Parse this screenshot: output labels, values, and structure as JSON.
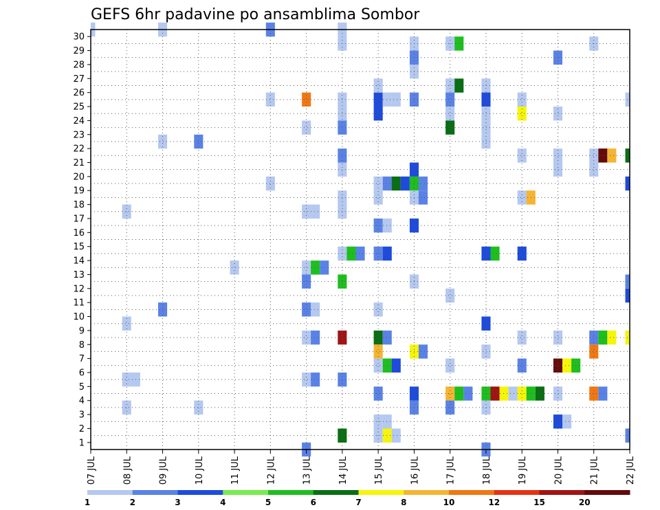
{
  "chart_data": {
    "type": "heatmap",
    "title": "GEFS 6hr padavine po ansamblima Sombor",
    "x_tick_labels": [
      "07 JUL",
      "08 JUL",
      "09 JUL",
      "10 JUL",
      "11 JUL",
      "12 JUL",
      "13 JUL",
      "14 JUL",
      "15 JUL",
      "16 JUL",
      "17 JUL",
      "18 JUL",
      "19 JUL",
      "20 JUL",
      "21 JUL",
      "22 JUL"
    ],
    "y_tick_labels": [
      "1",
      "2",
      "3",
      "4",
      "5",
      "6",
      "7",
      "8",
      "9",
      "10",
      "11",
      "12",
      "13",
      "14",
      "15",
      "16",
      "17",
      "18",
      "19",
      "20",
      "21",
      "22",
      "23",
      "24",
      "25",
      "26",
      "27",
      "28",
      "29",
      "30"
    ],
    "y_range": [
      0,
      30
    ],
    "x_range_days": [
      0,
      15
    ],
    "steps_per_day": 4,
    "grid": "dotted",
    "legend": {
      "position": "bottom",
      "labels": [
        "1",
        "2",
        "3",
        "4",
        "5",
        "6",
        "7",
        "8",
        "10",
        "12",
        "15",
        "20"
      ],
      "colors": [
        "#b4c8f0",
        "#5a82e6",
        "#1e4bdc",
        "#78eb50",
        "#1ebe1e",
        "#0a6e14",
        "#f5f50a",
        "#f5b432",
        "#f07814",
        "#e63214",
        "#a01414",
        "#640a0a"
      ]
    },
    "cells": [
      [
        0,
        30,
        1
      ],
      [
        5,
        30,
        2
      ],
      [
        7,
        30,
        1
      ],
      [
        7,
        29,
        1
      ],
      [
        2,
        30,
        1
      ],
      [
        9,
        29,
        1
      ],
      [
        9,
        28,
        2
      ],
      [
        9,
        27,
        1
      ],
      [
        10,
        29,
        1
      ],
      [
        10,
        26,
        1
      ],
      [
        10,
        25,
        2
      ],
      [
        10,
        29,
        5
      ],
      [
        10,
        26,
        6
      ],
      [
        11,
        26,
        1
      ],
      [
        13,
        28,
        2
      ],
      [
        14,
        29,
        1
      ],
      [
        5,
        25,
        1
      ],
      [
        6,
        25,
        10
      ],
      [
        7,
        25,
        1
      ],
      [
        8,
        25,
        3
      ],
      [
        7,
        24,
        1
      ],
      [
        8,
        26,
        1
      ],
      [
        8,
        25,
        1
      ],
      [
        8,
        24,
        3
      ],
      [
        8,
        25,
        1
      ],
      [
        9,
        25,
        2
      ],
      [
        10,
        24,
        1
      ],
      [
        10,
        23,
        6
      ],
      [
        11,
        23,
        1
      ],
      [
        11,
        24,
        1
      ],
      [
        11,
        22,
        1
      ],
      [
        11,
        25,
        3
      ],
      [
        12,
        24,
        7
      ],
      [
        12,
        25,
        1
      ],
      [
        13,
        24,
        1
      ],
      [
        15,
        25,
        1
      ],
      [
        6,
        23,
        1
      ],
      [
        7,
        23,
        2
      ],
      [
        2,
        22,
        1
      ],
      [
        3,
        22,
        2
      ],
      [
        7,
        21,
        2
      ],
      [
        7,
        20,
        1
      ],
      [
        12,
        21,
        1
      ],
      [
        13,
        21,
        1
      ],
      [
        13,
        20,
        1
      ],
      [
        14,
        21,
        1
      ],
      [
        14,
        20,
        1
      ],
      [
        14,
        21,
        20
      ],
      [
        14,
        21,
        8
      ],
      [
        15,
        21,
        6
      ],
      [
        5,
        19,
        1
      ],
      [
        8,
        19,
        1
      ],
      [
        8,
        19,
        2
      ],
      [
        8,
        19,
        6
      ],
      [
        8,
        19,
        3
      ],
      [
        9,
        20,
        3
      ],
      [
        9,
        19,
        5
      ],
      [
        9,
        19,
        2
      ],
      [
        15,
        19,
        3
      ],
      [
        7,
        18,
        1
      ],
      [
        8,
        18,
        1
      ],
      [
        9,
        18,
        1
      ],
      [
        9,
        18,
        2
      ],
      [
        12,
        18,
        1
      ],
      [
        12,
        18,
        8
      ],
      [
        1,
        17,
        1
      ],
      [
        6,
        17,
        1
      ],
      [
        6,
        17,
        1
      ],
      [
        7,
        17,
        1
      ],
      [
        8,
        16,
        2
      ],
      [
        8,
        16,
        1
      ],
      [
        9,
        16,
        3
      ],
      [
        7,
        14,
        1
      ],
      [
        7,
        14,
        5
      ],
      [
        7,
        14,
        2
      ],
      [
        8,
        14,
        2
      ],
      [
        8,
        14,
        3
      ],
      [
        11,
        14,
        3
      ],
      [
        11,
        14,
        5
      ],
      [
        12,
        14,
        3
      ],
      [
        4,
        13,
        1
      ],
      [
        6,
        13,
        1
      ],
      [
        6,
        13,
        5
      ],
      [
        6,
        13,
        2
      ],
      [
        6,
        12,
        2
      ],
      [
        7,
        12,
        5
      ],
      [
        9,
        12,
        1
      ],
      [
        10,
        11,
        1
      ],
      [
        15,
        11,
        3
      ],
      [
        15,
        11,
        8
      ],
      [
        15,
        12,
        2
      ],
      [
        2,
        10,
        2
      ],
      [
        6,
        10,
        2
      ],
      [
        6,
        10,
        1
      ],
      [
        8,
        10,
        1
      ],
      [
        1,
        9,
        1
      ],
      [
        11,
        9,
        3
      ],
      [
        6,
        8,
        1
      ],
      [
        6,
        8,
        2
      ],
      [
        7,
        8,
        15
      ],
      [
        8,
        8,
        6
      ],
      [
        8,
        8,
        2
      ],
      [
        8,
        7,
        8
      ],
      [
        9,
        7,
        7
      ],
      [
        9,
        7,
        2
      ],
      [
        11,
        7,
        1
      ],
      [
        12,
        8,
        1
      ],
      [
        13,
        8,
        1
      ],
      [
        14,
        8,
        2
      ],
      [
        14,
        8,
        5
      ],
      [
        14,
        8,
        7
      ],
      [
        15,
        8,
        7
      ],
      [
        14,
        7,
        10
      ],
      [
        8,
        6,
        1
      ],
      [
        8,
        6,
        5
      ],
      [
        8,
        6,
        3
      ],
      [
        10,
        6,
        1
      ],
      [
        12,
        6,
        2
      ],
      [
        13,
        6,
        20
      ],
      [
        13,
        6,
        7
      ],
      [
        13,
        6,
        5
      ],
      [
        1,
        5,
        1
      ],
      [
        1,
        5,
        1
      ],
      [
        6,
        5,
        1
      ],
      [
        6,
        5,
        2
      ],
      [
        7,
        5,
        2
      ],
      [
        8,
        4,
        2
      ],
      [
        9,
        4,
        3
      ],
      [
        10,
        4,
        8
      ],
      [
        10,
        4,
        5
      ],
      [
        10,
        4,
        2
      ],
      [
        11,
        4,
        5
      ],
      [
        11,
        4,
        15
      ],
      [
        11,
        4,
        7
      ],
      [
        11,
        4,
        1
      ],
      [
        12,
        4,
        7
      ],
      [
        12,
        4,
        5
      ],
      [
        12,
        4,
        6
      ],
      [
        13,
        4,
        1
      ],
      [
        14,
        4,
        10
      ],
      [
        14,
        4,
        2
      ],
      [
        1,
        3,
        1
      ],
      [
        3,
        3,
        1
      ],
      [
        9,
        3,
        2
      ],
      [
        10,
        3,
        2
      ],
      [
        11,
        3,
        1
      ],
      [
        8,
        2,
        1
      ],
      [
        8,
        2,
        1
      ],
      [
        13,
        2,
        3
      ],
      [
        13,
        2,
        1
      ],
      [
        7,
        1,
        6
      ],
      [
        8,
        1,
        1
      ],
      [
        8,
        1,
        7
      ],
      [
        8,
        1,
        1
      ],
      [
        15,
        1,
        2
      ],
      [
        6,
        0,
        2
      ],
      [
        11,
        0,
        2
      ]
    ]
  }
}
